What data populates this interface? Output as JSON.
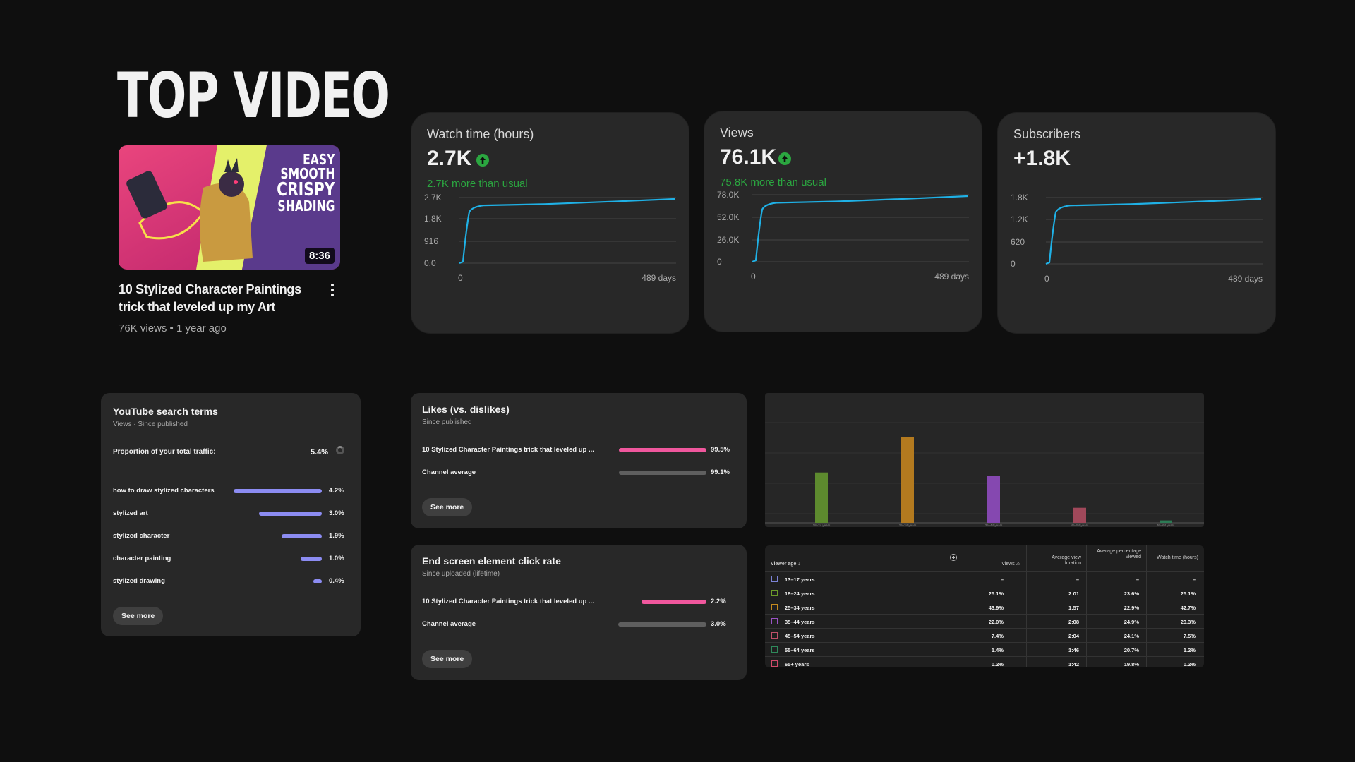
{
  "top_video": {
    "heading": "TOP VIDEO",
    "thumbnail_text": [
      "EASY",
      "SMOOTH",
      "CRISPY",
      "SHADING"
    ],
    "duration": "8:36",
    "title": "10 Stylized Character Paintings trick that leveled up my Art",
    "meta": "76K views • 1 year ago"
  },
  "kpis": [
    {
      "label": "Watch time (hours)",
      "value": "2.7K",
      "trend": "up",
      "note": "2.7K more than usual",
      "y_ticks": [
        "2.7K",
        "1.8K",
        "916",
        "0.0"
      ],
      "x_start": "0",
      "x_end": "489 days"
    },
    {
      "label": "Views",
      "value": "76.1K",
      "trend": "up",
      "note": "75.8K more than usual",
      "y_ticks": [
        "78.0K",
        "52.0K",
        "26.0K",
        "0"
      ],
      "x_start": "0",
      "x_end": "489 days"
    },
    {
      "label": "Subscribers",
      "value": "+1.8K",
      "y_ticks": [
        "1.8K",
        "1.2K",
        "620",
        "0"
      ],
      "x_start": "0",
      "x_end": "489 days"
    }
  ],
  "search_terms": {
    "title": "YouTube search terms",
    "subtitle": "Views · Since published",
    "proportion_label": "Proportion of your total traffic:",
    "proportion_value": "5.4%",
    "items": [
      {
        "term": "how to draw stylized characters",
        "pct": "4.2%",
        "value": 4.2
      },
      {
        "term": "stylized art",
        "pct": "3.0%",
        "value": 3.0
      },
      {
        "term": "stylized character",
        "pct": "1.9%",
        "value": 1.9
      },
      {
        "term": "character painting",
        "pct": "1.0%",
        "value": 1.0
      },
      {
        "term": "stylized drawing",
        "pct": "0.4%",
        "value": 0.4
      }
    ],
    "see_more": "See more",
    "bar_color": "#8c8cf2"
  },
  "likes": {
    "title": "Likes (vs. dislikes)",
    "subtitle": "Since published",
    "rows": [
      {
        "label": "10 Stylized Character Paintings trick that leveled up ...",
        "pct": "99.5%",
        "value": 99.5,
        "color": "#f0579d"
      },
      {
        "label": "Channel average",
        "pct": "99.1%",
        "value": 99.1,
        "color": "#5f5f5f"
      }
    ],
    "see_more": "See more"
  },
  "end_screen": {
    "title": "End screen element click rate",
    "subtitle": "Since uploaded (lifetime)",
    "rows": [
      {
        "label": "10 Stylized Character Paintings trick that leveled up ...",
        "pct": "2.2%",
        "value": 2.2,
        "color": "#f0579d"
      },
      {
        "label": "Channel average",
        "pct": "3.0%",
        "value": 3.0,
        "color": "#5f5f5f"
      }
    ],
    "see_more": "See more"
  },
  "chart_data": {
    "type": "bar",
    "categories": [
      "18–24 years",
      "25–34 years",
      "35–44 years",
      "45–54 years",
      "55–64 years"
    ],
    "values": [
      25.1,
      42.7,
      23.3,
      7.5,
      1.2
    ],
    "colors": [
      "#5d8a2e",
      "#b37a1f",
      "#8548b0",
      "#a0485a",
      "#2d7a55"
    ],
    "grid": true,
    "ylim": [
      0,
      50
    ]
  },
  "age_table": {
    "headers": [
      "Viewer age",
      "Views",
      "Average view duration",
      "Average percentage viewed",
      "Watch time (hours)"
    ],
    "rows": [
      {
        "age": "13–17 years",
        "views": "–",
        "avd": "–",
        "apv": "–",
        "wt": "–",
        "color": "#7c83d6"
      },
      {
        "age": "18–24 years",
        "views": "25.1%",
        "avd": "2:01",
        "apv": "23.6%",
        "wt": "25.1%",
        "color": "#6c9a2a"
      },
      {
        "age": "25–34 years",
        "views": "43.9%",
        "avd": "1:57",
        "apv": "22.9%",
        "wt": "42.7%",
        "color": "#c58a1e"
      },
      {
        "age": "35–44 years",
        "views": "22.0%",
        "avd": "2:08",
        "apv": "24.9%",
        "wt": "23.3%",
        "color": "#9a52c4"
      },
      {
        "age": "45–54 years",
        "views": "7.4%",
        "avd": "2:04",
        "apv": "24.1%",
        "wt": "7.5%",
        "color": "#c05069"
      },
      {
        "age": "55–64 years",
        "views": "1.4%",
        "avd": "1:46",
        "apv": "20.7%",
        "wt": "1.2%",
        "color": "#2f8a5b"
      },
      {
        "age": "65+ years",
        "views": "0.2%",
        "avd": "1:42",
        "apv": "19.8%",
        "wt": "0.2%",
        "color": "#d04a6a"
      }
    ]
  },
  "colors": {
    "accent_line": "#1fb1e6",
    "positive": "#2ba640"
  }
}
